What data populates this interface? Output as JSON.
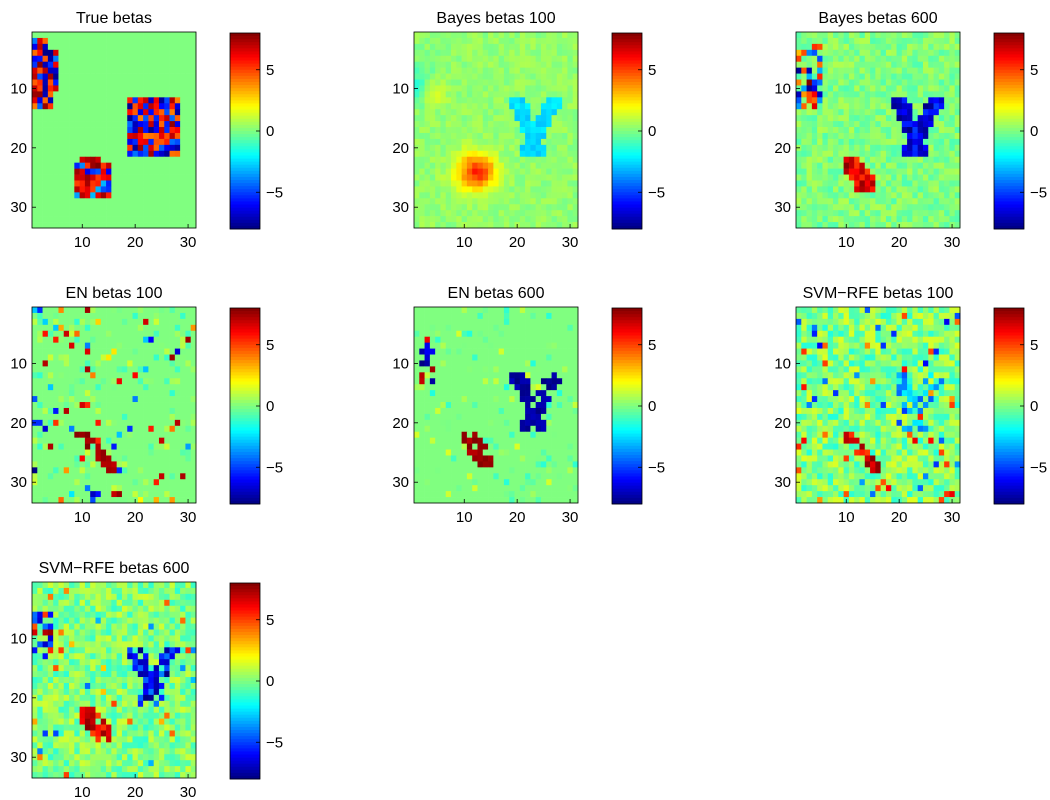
{
  "figure": {
    "panels": [
      {
        "title": "True betas",
        "colorbar_ticks": [
          "5",
          "0",
          "−5"
        ]
      },
      {
        "title": "Bayes betas 100",
        "colorbar_ticks": [
          "5",
          "0",
          "−5"
        ]
      },
      {
        "title": "Bayes betas 600",
        "colorbar_ticks": [
          "5",
          "0",
          "−5"
        ]
      },
      {
        "title": "EN betas 100",
        "colorbar_ticks": [
          "5",
          "0",
          "−5"
        ]
      },
      {
        "title": "EN betas 600",
        "colorbar_ticks": [
          "5",
          "0",
          "−5"
        ]
      },
      {
        "title": "SVM−RFE betas 100",
        "colorbar_ticks": [
          "5",
          "0",
          "−5"
        ]
      },
      {
        "title": "SVM−RFE betas 600",
        "colorbar_ticks": [
          "5",
          "0",
          "−5"
        ]
      }
    ]
  },
  "chart_data": {
    "type": "heatmap",
    "grid_size": [
      33,
      31
    ],
    "colormap": "jet",
    "clim": [
      -8,
      8
    ],
    "x_ticks": [
      10,
      20,
      30
    ],
    "y_ticks": [
      10,
      20,
      30
    ],
    "colorbar_ticks": [
      5,
      0,
      -5
    ],
    "panels": [
      {
        "title": "True betas",
        "regions": [
          {
            "label": "top-left block",
            "rows": [
              2,
              13
            ],
            "cols": [
              1,
              5
            ],
            "values": "random ±8"
          },
          {
            "label": "right block",
            "rows": [
              12,
              21
            ],
            "cols": [
              19,
              28
            ],
            "values": "random ±8"
          },
          {
            "label": "bottom block",
            "rows": [
              22,
              28
            ],
            "cols": [
              9,
              15
            ],
            "values": "mostly positive ≈ +6"
          }
        ]
      },
      {
        "title": "Bayes betas 100",
        "regions": [
          {
            "label": "positive blob",
            "center": [
              24,
              12
            ],
            "peak": 4.5
          },
          {
            "label": "negative V shape",
            "center": [
              15,
              22
            ],
            "peak": -3
          },
          {
            "label": "left blobs",
            "center": [
              11,
              3
            ],
            "peak": 1.5
          }
        ]
      },
      {
        "title": "Bayes betas 600",
        "regions": [
          {
            "label": "positive blob",
            "center": [
              24,
              12
            ],
            "peak": 7.5
          },
          {
            "label": "negative V shape",
            "center": [
              15,
              23
            ],
            "peak": -7
          },
          {
            "label": "top-left mixed",
            "center": [
              8,
              3
            ],
            "peak": 6
          }
        ]
      },
      {
        "title": "EN betas 100",
        "regions": [
          {
            "label": "sparse positive diagonal",
            "center": [
              23,
              12
            ],
            "peak": 8
          },
          {
            "label": "scattered sparse",
            "center": [
              15,
              15
            ],
            "peak": -6
          }
        ]
      },
      {
        "title": "EN betas 600",
        "regions": [
          {
            "label": "positive blob",
            "center": [
              24,
              12
            ],
            "peak": 8
          },
          {
            "label": "negative V shape",
            "center": [
              16,
              22
            ],
            "peak": -8
          },
          {
            "label": "top-left cluster",
            "center": [
              9,
              2
            ],
            "peak": 8
          }
        ]
      },
      {
        "title": "SVM−RFE betas 100",
        "regions": [
          {
            "label": "positive diagonal",
            "center": [
              23,
              12
            ],
            "peak": 7
          },
          {
            "label": "noisy background",
            "center": [
              16,
              16
            ],
            "peak": 5
          }
        ]
      },
      {
        "title": "SVM−RFE betas 600",
        "regions": [
          {
            "label": "positive blob",
            "center": [
              24,
              12
            ],
            "peak": 8
          },
          {
            "label": "negative V shape",
            "center": [
              16,
              23
            ],
            "peak": -7
          },
          {
            "label": "top-left cluster",
            "center": [
              9,
              2
            ],
            "peak": 7
          }
        ]
      }
    ]
  }
}
